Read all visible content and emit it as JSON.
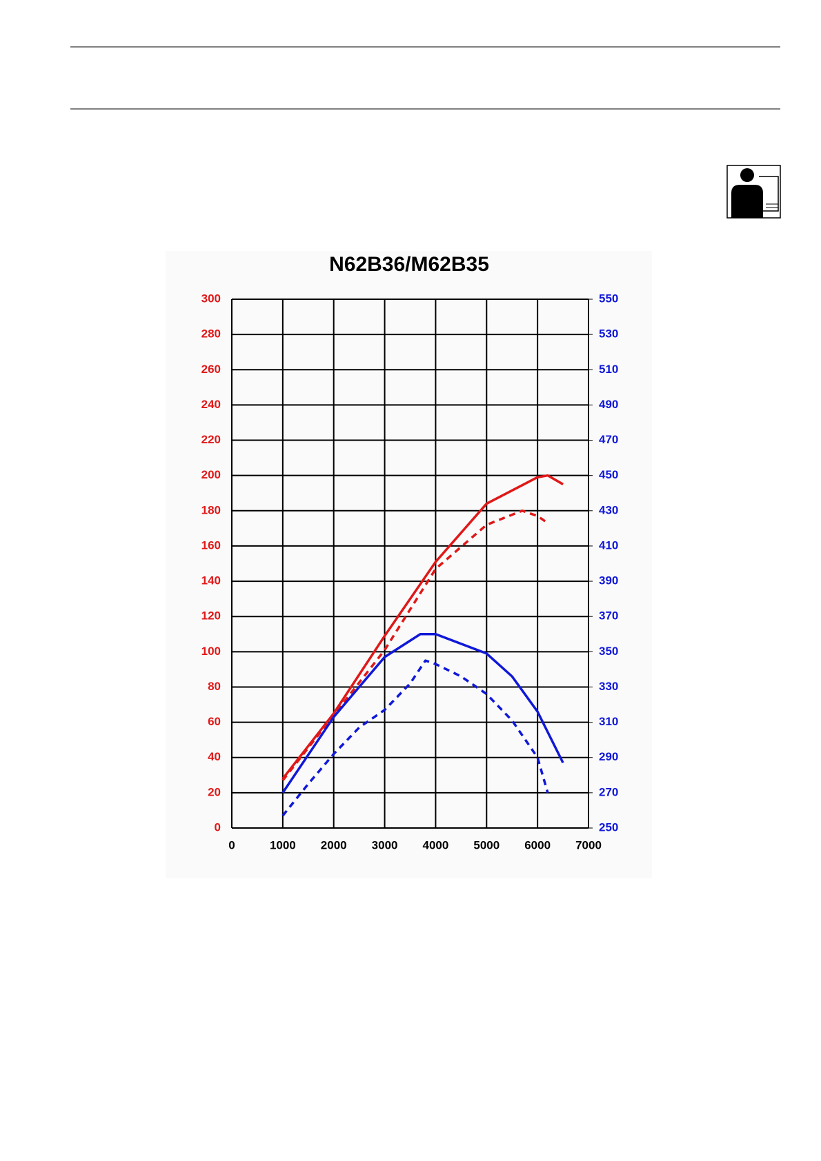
{
  "chart_data": {
    "type": "line",
    "title": "N62B36/M62B35",
    "xlim": [
      0,
      7000
    ],
    "xticks": [
      0,
      1000,
      2000,
      3000,
      4000,
      5000,
      6000,
      7000
    ],
    "ylim": [
      0,
      300
    ],
    "yticks": [
      0,
      20,
      40,
      60,
      80,
      100,
      120,
      140,
      160,
      180,
      200,
      220,
      240,
      260,
      280,
      300
    ],
    "y2lim": [
      250,
      550
    ],
    "y2ticks": [
      250,
      270,
      290,
      310,
      330,
      350,
      370,
      390,
      410,
      430,
      450,
      470,
      490,
      510,
      530,
      550
    ],
    "ycolor": "#e01818",
    "y2color": "#1018d8",
    "grid": true,
    "series": [
      {
        "color": "#e01818",
        "dash": false,
        "x": [
          1000,
          2000,
          3000,
          4000,
          5000,
          6000,
          6200,
          6500
        ],
        "values": [
          28,
          65,
          109,
          151,
          184,
          199,
          200,
          195
        ]
      },
      {
        "color": "#e01818",
        "dash": true,
        "x": [
          1000,
          2000,
          3000,
          4000,
          5000,
          5700,
          6000,
          6150
        ],
        "values": [
          27,
          64,
          101,
          147,
          172,
          180,
          177,
          174
        ]
      },
      {
        "color": "#1018d8",
        "dash": false,
        "axis": "y2",
        "x": [
          1000,
          2000,
          3000,
          3700,
          4000,
          5000,
          5500,
          6000,
          6500
        ],
        "values": [
          270,
          313,
          347,
          360,
          360,
          349,
          336,
          316,
          287
        ]
      },
      {
        "color": "#1018d8",
        "dash": true,
        "axis": "y2",
        "x": [
          1000,
          1500,
          2000,
          2500,
          3000,
          3500,
          3800,
          4000,
          4500,
          5000,
          5500,
          6000,
          6200
        ],
        "values": [
          257,
          275,
          292,
          307,
          317,
          332,
          345,
          343,
          336,
          326,
          311,
          290,
          270
        ]
      }
    ]
  }
}
